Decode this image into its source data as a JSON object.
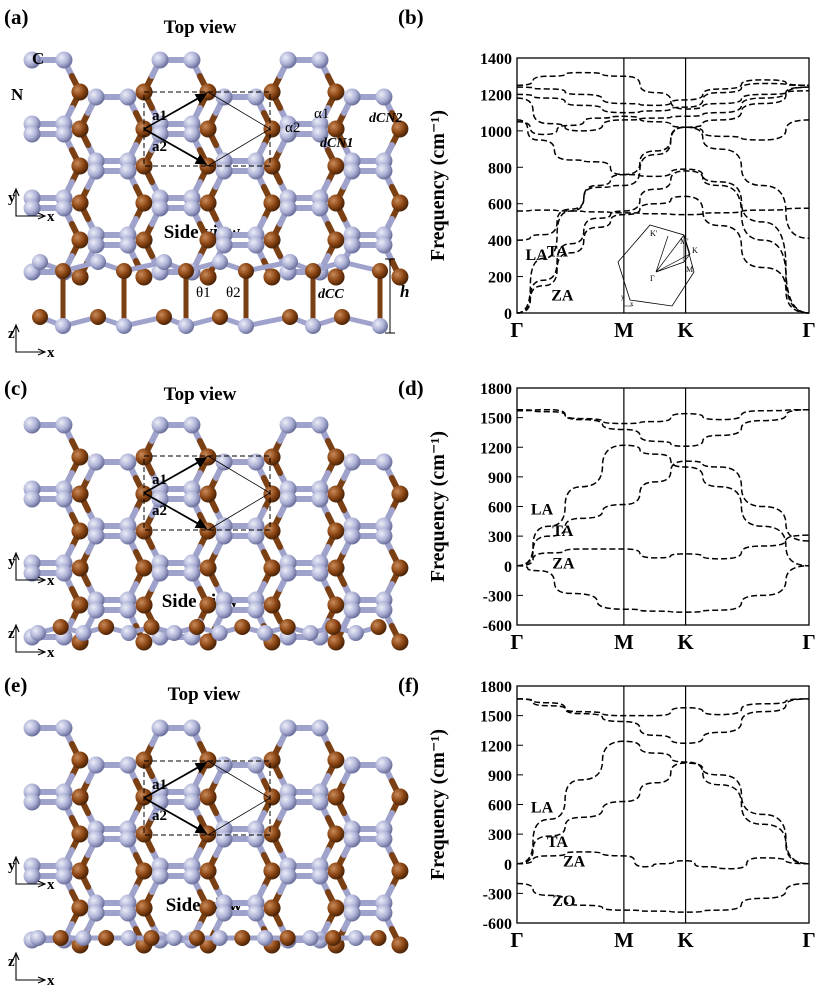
{
  "panels": {
    "a": "(a)",
    "b": "(b)",
    "c": "(c)",
    "d": "(d)",
    "e": "(e)",
    "f": "(f)"
  },
  "structure": {
    "top_view": "Top view",
    "side_view": "Side view",
    "atom_C": "C",
    "atom_N": "N",
    "vec_a1": "a1",
    "vec_a2": "a2",
    "axis_x": "x",
    "axis_y": "y",
    "axis_z": "z",
    "alpha1": "α1",
    "alpha2": "α2",
    "theta1": "θ1",
    "theta2": "θ2",
    "d_cn1": "dCN1",
    "d_cn2": "dCN2",
    "d_cc": "dCC",
    "h": "h"
  },
  "colors": {
    "carbon": "#8B4513",
    "nitrogen": "#A9ADD0",
    "bond_c": "#7a3f12",
    "bond_n": "#9fa3cc"
  },
  "bz_inset": {
    "K_prime": "K'",
    "M_prime": "M'",
    "K": "K",
    "M": "M",
    "Gamma": "Γ",
    "ky": "y",
    "kx": "x"
  },
  "chart_data": [
    {
      "id": "b",
      "type": "line",
      "ylabel": "Frequency (cm⁻¹)",
      "ylim": [
        0,
        1400
      ],
      "yticks": [
        0,
        200,
        400,
        600,
        800,
        1000,
        1200,
        1400
      ],
      "xticks": [
        "Γ",
        "M",
        "K",
        "Γ"
      ],
      "xtick_pos": [
        0,
        1,
        1.5774,
        2.7321
      ],
      "annotations": [
        {
          "text": "LA",
          "x": 0.08,
          "y": 290
        },
        {
          "text": "TA",
          "x": 0.28,
          "y": 310
        },
        {
          "text": "ZA",
          "x": 0.32,
          "y": 70
        }
      ],
      "series": [
        {
          "values": [
            [
              0,
              0
            ],
            [
              0.25,
              150
            ],
            [
              0.5,
              330
            ],
            [
              0.75,
              470
            ],
            [
              1,
              540
            ],
            [
              1.3,
              600
            ],
            [
              1.5774,
              640
            ],
            [
              1.9,
              480
            ],
            [
              2.3,
              250
            ],
            [
              2.7321,
              0
            ]
          ]
        },
        {
          "values": [
            [
              0,
              0
            ],
            [
              0.25,
              180
            ],
            [
              0.5,
              380
            ],
            [
              0.75,
              520
            ],
            [
              1,
              560
            ],
            [
              1.3,
              680
            ],
            [
              1.5774,
              780
            ],
            [
              1.9,
              700
            ],
            [
              2.3,
              400
            ],
            [
              2.7321,
              0
            ]
          ]
        },
        {
          "values": [
            [
              0,
              0
            ],
            [
              0.25,
              300
            ],
            [
              0.5,
              560
            ],
            [
              0.75,
              700
            ],
            [
              1,
              760
            ],
            [
              1.3,
              750
            ],
            [
              1.5774,
              790
            ],
            [
              1.9,
              720
            ],
            [
              2.3,
              500
            ],
            [
              2.7321,
              0
            ]
          ]
        },
        {
          "values": [
            [
              0,
              400
            ],
            [
              0.25,
              430
            ],
            [
              0.5,
              570
            ],
            [
              0.75,
              690
            ],
            [
              1,
              700
            ],
            [
              1.3,
              870
            ],
            [
              1.5774,
              1020
            ],
            [
              1.9,
              900
            ],
            [
              2.3,
              700
            ],
            [
              2.7321,
              410
            ]
          ]
        },
        {
          "values": [
            [
              0,
              560
            ],
            [
              0.25,
              565
            ],
            [
              0.5,
              560
            ],
            [
              0.75,
              555
            ],
            [
              1,
              550
            ],
            [
              1.3,
              545
            ],
            [
              1.5774,
              540
            ],
            [
              1.9,
              550
            ],
            [
              2.3,
              565
            ],
            [
              2.7321,
              575
            ]
          ]
        },
        {
          "values": [
            [
              0,
              1060
            ],
            [
              0.2,
              950
            ],
            [
              0.5,
              840
            ],
            [
              0.75,
              830
            ],
            [
              1,
              760
            ],
            [
              1.3,
              890
            ],
            [
              1.5774,
              1020
            ],
            [
              1.9,
              1060
            ],
            [
              2.3,
              1150
            ],
            [
              2.7321,
              1240
            ]
          ]
        },
        {
          "values": [
            [
              0,
              1050
            ],
            [
              0.25,
              980
            ],
            [
              0.5,
              1030
            ],
            [
              0.75,
              1070
            ],
            [
              1,
              1080
            ],
            [
              1.3,
              1050
            ],
            [
              1.5774,
              1020
            ],
            [
              1.9,
              970
            ],
            [
              2.3,
              950
            ],
            [
              2.7321,
              1060
            ]
          ]
        },
        {
          "values": [
            [
              0,
              1180
            ],
            [
              0.3,
              1040
            ],
            [
              0.6,
              1000
            ],
            [
              1,
              1060
            ],
            [
              1.3,
              1070
            ],
            [
              1.5774,
              1080
            ],
            [
              1.9,
              1100
            ],
            [
              2.3,
              1180
            ],
            [
              2.7321,
              1240
            ]
          ]
        },
        {
          "values": [
            [
              0,
              1200
            ],
            [
              0.3,
              1180
            ],
            [
              0.6,
              1140
            ],
            [
              1,
              1100
            ],
            [
              1.3,
              1110
            ],
            [
              1.5774,
              1130
            ],
            [
              1.9,
              1210
            ],
            [
              2.3,
              1260
            ],
            [
              2.7321,
              1250
            ]
          ]
        },
        {
          "values": [
            [
              0,
              1240
            ],
            [
              0.3,
              1230
            ],
            [
              0.6,
              1200
            ],
            [
              1,
              1150
            ],
            [
              1.3,
              1140
            ],
            [
              1.5774,
              1170
            ],
            [
              1.9,
              1230
            ],
            [
              2.3,
              1280
            ],
            [
              2.7321,
              1250
            ]
          ]
        },
        {
          "values": [
            [
              0,
              1250
            ],
            [
              0.3,
              1300
            ],
            [
              0.6,
              1320
            ],
            [
              1,
              1300
            ],
            [
              1.3,
              1210
            ],
            [
              1.5774,
              1120
            ],
            [
              1.9,
              1150
            ],
            [
              2.3,
              1200
            ],
            [
              2.7321,
              1220
            ]
          ]
        }
      ]
    },
    {
      "id": "d",
      "type": "line",
      "ylabel": "Frequency (cm⁻¹)",
      "ylim": [
        -600,
        1800
      ],
      "yticks": [
        -600,
        -300,
        0,
        300,
        600,
        900,
        1200,
        1500,
        1800
      ],
      "xticks": [
        "Γ",
        "M",
        "K",
        "Γ"
      ],
      "xtick_pos": [
        0,
        1,
        1.5774,
        2.7321
      ],
      "annotations": [
        {
          "text": "LA",
          "x": 0.13,
          "y": 520
        },
        {
          "text": "TA",
          "x": 0.33,
          "y": 300
        },
        {
          "text": "ZA",
          "x": 0.33,
          "y": -30
        }
      ],
      "series": [
        {
          "values": [
            [
              0,
              0
            ],
            [
              0.3,
              400
            ],
            [
              0.6,
              800
            ],
            [
              1,
              1220
            ],
            [
              1.3,
              1130
            ],
            [
              1.5774,
              1000
            ],
            [
              1.9,
              800
            ],
            [
              2.3,
              400
            ],
            [
              2.7321,
              0
            ]
          ]
        },
        {
          "values": [
            [
              0,
              0
            ],
            [
              0.3,
              300
            ],
            [
              0.6,
              480
            ],
            [
              1,
              620
            ],
            [
              1.3,
              850
            ],
            [
              1.5774,
              1060
            ],
            [
              1.9,
              1000
            ],
            [
              2.3,
              600
            ],
            [
              2.7321,
              250
            ]
          ]
        },
        {
          "values": [
            [
              0,
              0
            ],
            [
              0.3,
              130
            ],
            [
              0.6,
              170
            ],
            [
              1,
              170
            ],
            [
              1.3,
              80
            ],
            [
              1.5774,
              120
            ],
            [
              1.9,
              70
            ],
            [
              2.3,
              200
            ],
            [
              2.7321,
              310
            ]
          ]
        },
        {
          "values": [
            [
              0,
              0
            ],
            [
              0.2,
              -50
            ],
            [
              0.5,
              -280
            ],
            [
              1,
              -440
            ],
            [
              1.3,
              -460
            ],
            [
              1.5774,
              -470
            ],
            [
              1.9,
              -450
            ],
            [
              2.3,
              -300
            ],
            [
              2.7321,
              0
            ]
          ]
        },
        {
          "values": [
            [
              0,
              1570
            ],
            [
              0.3,
              1580
            ],
            [
              0.6,
              1480
            ],
            [
              1,
              1380
            ],
            [
              1.3,
              1260
            ],
            [
              1.5774,
              1210
            ],
            [
              1.9,
              1320
            ],
            [
              2.3,
              1470
            ],
            [
              2.7321,
              1580
            ]
          ]
        },
        {
          "values": [
            [
              0,
              1580
            ],
            [
              0.3,
              1560
            ],
            [
              0.6,
              1490
            ],
            [
              1,
              1440
            ],
            [
              1.3,
              1460
            ],
            [
              1.5774,
              1540
            ],
            [
              1.9,
              1480
            ],
            [
              2.3,
              1570
            ],
            [
              2.7321,
              1580
            ]
          ]
        }
      ]
    },
    {
      "id": "f",
      "type": "line",
      "ylabel": "Frequency (cm⁻¹)",
      "ylim": [
        -600,
        1800
      ],
      "yticks": [
        -600,
        -300,
        0,
        300,
        600,
        900,
        1200,
        1500,
        1800
      ],
      "xticks": [
        "Γ",
        "M",
        "K",
        "Γ"
      ],
      "xtick_pos": [
        0,
        1,
        1.5774,
        2.7321
      ],
      "annotations": [
        {
          "text": "LA",
          "x": 0.13,
          "y": 520
        },
        {
          "text": "TA",
          "x": 0.28,
          "y": 170
        },
        {
          "text": "ZA",
          "x": 0.43,
          "y": -30
        },
        {
          "text": "ZO",
          "x": 0.33,
          "y": -430
        }
      ],
      "series": [
        {
          "values": [
            [
              0,
              0
            ],
            [
              0.3,
              450
            ],
            [
              0.6,
              850
            ],
            [
              1,
              1240
            ],
            [
              1.3,
              1120
            ],
            [
              1.5774,
              1030
            ],
            [
              1.9,
              800
            ],
            [
              2.3,
              400
            ],
            [
              2.7321,
              0
            ]
          ]
        },
        {
          "values": [
            [
              0,
              0
            ],
            [
              0.3,
              280
            ],
            [
              0.6,
              470
            ],
            [
              1,
              630
            ],
            [
              1.3,
              820
            ],
            [
              1.5774,
              1020
            ],
            [
              1.9,
              900
            ],
            [
              2.3,
              500
            ],
            [
              2.7321,
              0
            ]
          ]
        },
        {
          "values": [
            [
              0,
              0
            ],
            [
              0.3,
              80
            ],
            [
              0.6,
              120
            ],
            [
              1,
              80
            ],
            [
              1.2,
              -30
            ],
            [
              1.35,
              0
            ],
            [
              1.5774,
              30
            ],
            [
              1.75,
              -30
            ],
            [
              2.0,
              -50
            ],
            [
              2.3,
              60
            ],
            [
              2.7321,
              0
            ]
          ]
        },
        {
          "values": [
            [
              0,
              -200
            ],
            [
              0.3,
              -320
            ],
            [
              0.6,
              -420
            ],
            [
              1,
              -470
            ],
            [
              1.3,
              -480
            ],
            [
              1.5774,
              -490
            ],
            [
              1.9,
              -470
            ],
            [
              2.3,
              -350
            ],
            [
              2.7321,
              -200
            ]
          ]
        },
        {
          "values": [
            [
              0,
              1670
            ],
            [
              0.3,
              1630
            ],
            [
              0.6,
              1520
            ],
            [
              1,
              1440
            ],
            [
              1.3,
              1300
            ],
            [
              1.5774,
              1220
            ],
            [
              1.9,
              1330
            ],
            [
              2.3,
              1540
            ],
            [
              2.7321,
              1670
            ]
          ]
        },
        {
          "values": [
            [
              0,
              1670
            ],
            [
              0.3,
              1600
            ],
            [
              0.6,
              1540
            ],
            [
              1,
              1500
            ],
            [
              1.3,
              1500
            ],
            [
              1.5774,
              1580
            ],
            [
              1.9,
              1510
            ],
            [
              2.3,
              1620
            ],
            [
              2.7321,
              1670
            ]
          ]
        }
      ]
    }
  ]
}
